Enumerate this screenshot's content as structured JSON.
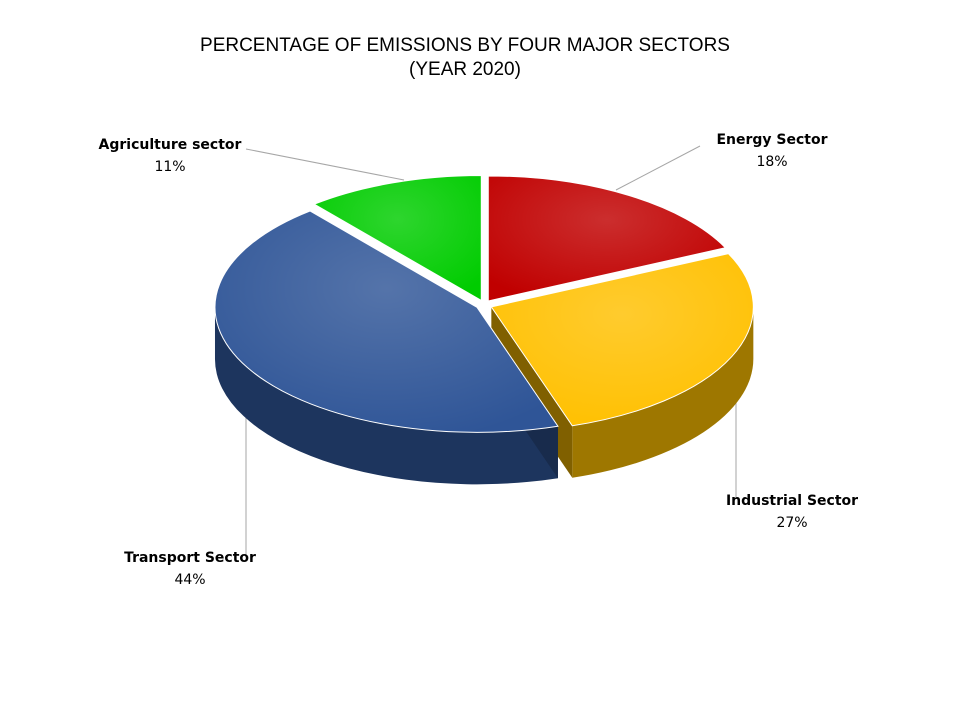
{
  "chart_data": {
    "type": "pie",
    "title": "PERCENTAGE OF EMISSIONS BY FOUR MAJOR SECTORS",
    "subtitle": "(YEAR 2020)",
    "style": "3d-exploded",
    "slices": [
      {
        "label": "Energy Sector",
        "value": 18,
        "value_label": "18%",
        "color": "#C00000"
      },
      {
        "label": "Industrial Sector",
        "value": 27,
        "value_label": "27%",
        "color": "#FFC000"
      },
      {
        "label": "Transport Sector",
        "value": 44,
        "value_label": "44%",
        "color": "#2F5597"
      },
      {
        "label": "Agriculture sector",
        "value": 11,
        "value_label": "11%",
        "color": "#00CC00"
      }
    ]
  }
}
